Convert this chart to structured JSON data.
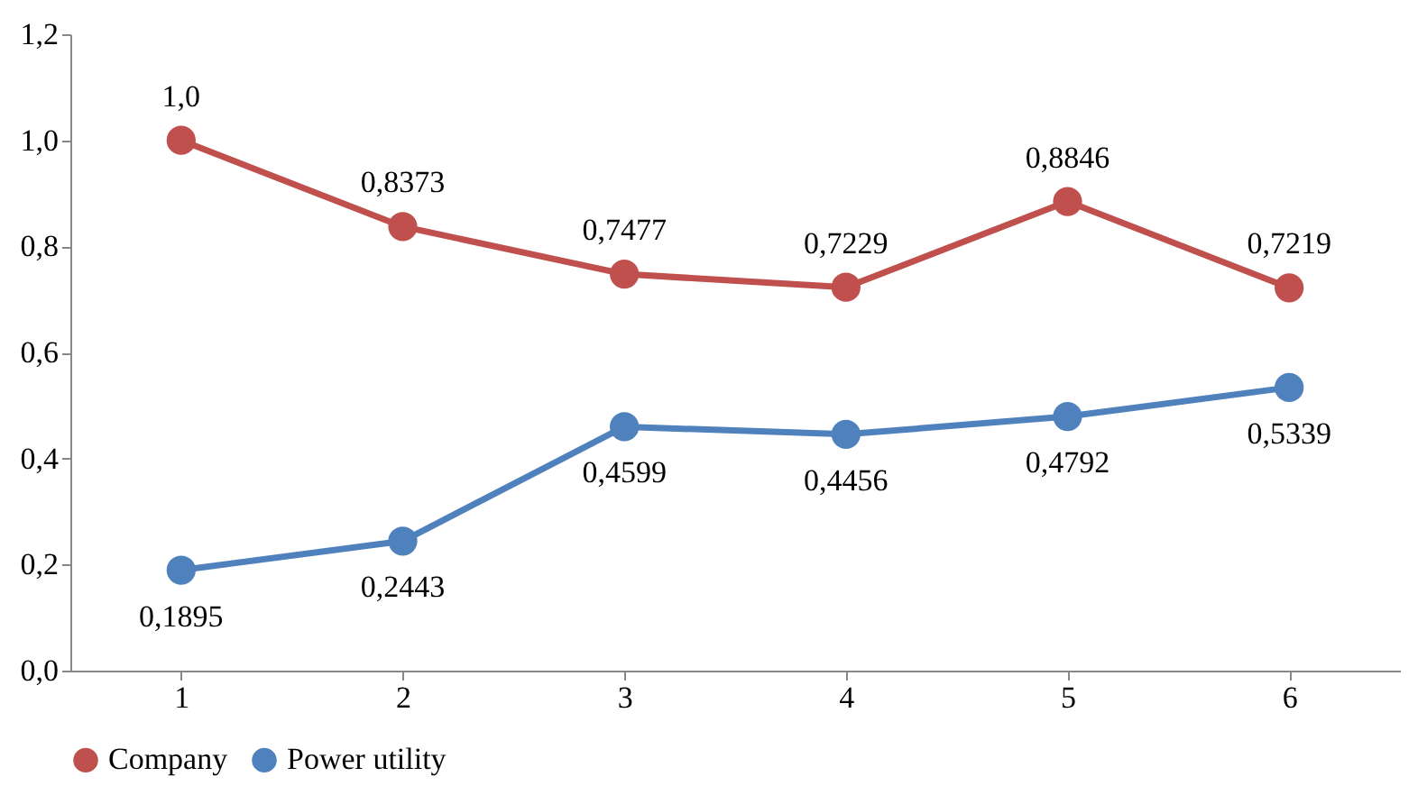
{
  "chart_data": {
    "type": "line",
    "categories": [
      "1",
      "2",
      "3",
      "4",
      "5",
      "6"
    ],
    "series": [
      {
        "name": "Company",
        "color": "#c0504d",
        "values": [
          1.0,
          0.8373,
          0.7477,
          0.7229,
          0.8846,
          0.7219
        ],
        "value_labels": [
          "1,0",
          "0,8373",
          "0,7477",
          "0,7229",
          "0,8846",
          "0,7219"
        ]
      },
      {
        "name": "Power utility",
        "color": "#4f81bd",
        "values": [
          0.1895,
          0.2443,
          0.4599,
          0.4456,
          0.4792,
          0.5339
        ],
        "value_labels": [
          "0,1895",
          "0,2443",
          "0,4599",
          "0,4456",
          "0,4792",
          "0,5339"
        ]
      }
    ],
    "ylim": [
      0,
      1.2
    ],
    "yticks": [
      {
        "value": 0,
        "label": "0,0"
      },
      {
        "value": 0.2,
        "label": "0,2"
      },
      {
        "value": 0.4,
        "label": "0,4"
      },
      {
        "value": 0.6,
        "label": "0,6"
      },
      {
        "value": 0.8,
        "label": "0,8"
      },
      {
        "value": 1.0,
        "label": "1,0"
      },
      {
        "value": 1.2,
        "label": "1,2"
      }
    ],
    "grid": false,
    "legend": "bottom",
    "marker": "circle",
    "line_style": "solid"
  }
}
